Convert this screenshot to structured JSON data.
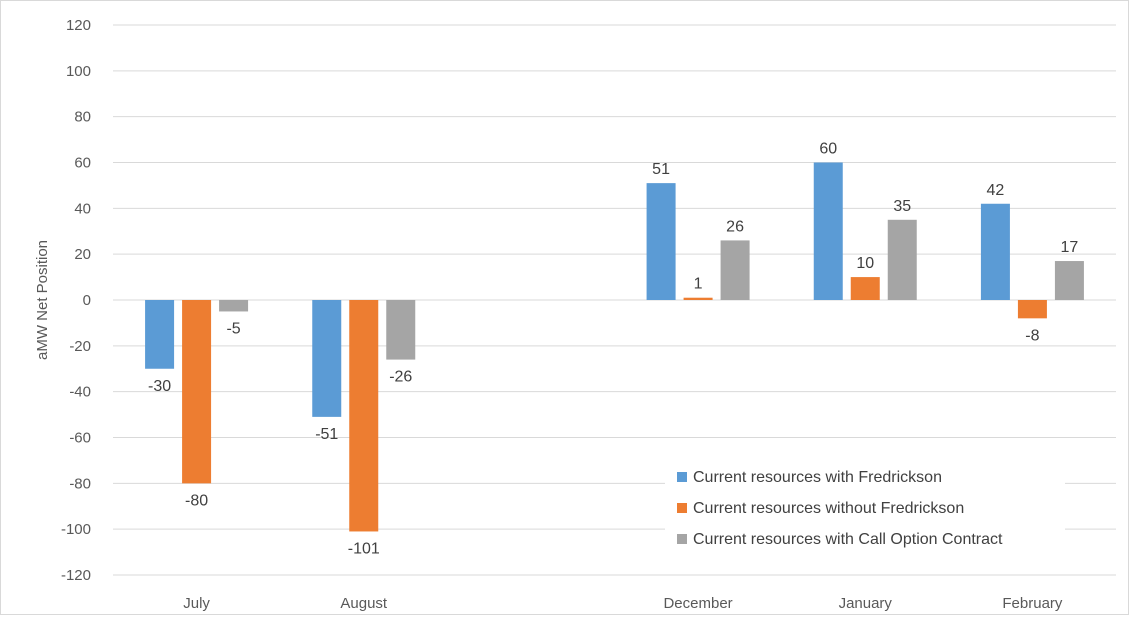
{
  "chart_data": {
    "type": "bar",
    "title": "",
    "xlabel": "",
    "ylabel": "aMW Net Position",
    "ylim": [
      -120,
      120
    ],
    "yticks": [
      120,
      100,
      80,
      60,
      40,
      20,
      0,
      -20,
      -40,
      -60,
      -80,
      -100,
      -120
    ],
    "grid": true,
    "legend_position": "bottom-right",
    "categories": [
      "July",
      "August",
      "",
      "December",
      "January",
      "February"
    ],
    "series": [
      {
        "name": "Current resources with Fredrickson",
        "color": "#5b9bd5",
        "values": [
          -30,
          -51,
          null,
          51,
          60,
          42
        ]
      },
      {
        "name": "Current resources without Fredrickson",
        "color": "#ed7d31",
        "values": [
          -80,
          -101,
          null,
          1,
          10,
          -8
        ]
      },
      {
        "name": "Current resources with Call Option Contract",
        "color": "#a5a5a5",
        "values": [
          -5,
          -26,
          null,
          26,
          35,
          17
        ]
      }
    ]
  }
}
